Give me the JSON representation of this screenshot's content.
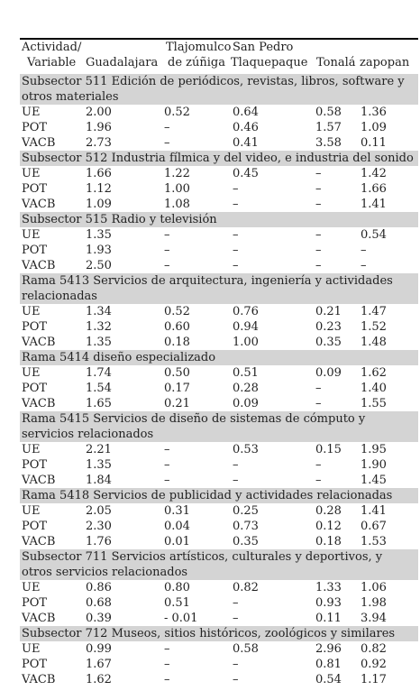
{
  "header": {
    "col0_line1": "Actividad/",
    "col0_line2": "Variable",
    "col1": "Guadalajara",
    "col2_line1": "Tlajomulco",
    "col2_line2": "de zúñiga",
    "col3_line1": "San Pedro",
    "col3_line2": "Tlaquepaque",
    "col4": "Tonalá",
    "col5": "zapopan"
  },
  "sections": [
    {
      "title": "Subsector 511 Edición de periódicos, revistas, libros, software y otros materiales",
      "rows": [
        [
          "UE",
          "2.00",
          "0.52",
          "0.64",
          "0.58",
          "1.36"
        ],
        [
          "POT",
          "1.96",
          "–",
          "0.46",
          "1.57",
          "1.09"
        ],
        [
          "VACB",
          "2.73",
          "–",
          "0.41",
          "3.58",
          "0.11"
        ]
      ]
    },
    {
      "title": "Subsector 512 Industria fílmica y del video, e industria del sonido",
      "rows": [
        [
          "UE",
          "1.66",
          "1.22",
          "0.45",
          "–",
          "1.42"
        ],
        [
          "POT",
          "1.12",
          "1.00",
          "–",
          "–",
          "1.66"
        ],
        [
          "VACB",
          "1.09",
          "1.08",
          "–",
          "–",
          "1.41"
        ]
      ]
    },
    {
      "title": "Subsector 515 Radio y televisión",
      "rows": [
        [
          "UE",
          "1.35",
          "–",
          "–",
          "–",
          "0.54"
        ],
        [
          "POT",
          "1.93",
          "–",
          "–",
          "–",
          "–"
        ],
        [
          "VACB",
          "2.50",
          "–",
          "–",
          "–",
          "–"
        ]
      ]
    },
    {
      "title": "Rama 5413 Servicios de arquitectura, ingeniería y actividades relacionadas",
      "rows": [
        [
          "UE",
          "1.34",
          "0.52",
          "0.76",
          "0.21",
          "1.47"
        ],
        [
          "POT",
          "1.32",
          "0.60",
          "0.94",
          "0.23",
          "1.52"
        ],
        [
          "VACB",
          "1.35",
          "0.18",
          "1.00",
          "0.35",
          "1.48"
        ]
      ]
    },
    {
      "title": "Rama 5414 diseño especializado",
      "rows": [
        [
          "UE",
          "1.74",
          "0.50",
          "0.51",
          "0.09",
          "1.62"
        ],
        [
          "POT",
          "1.54",
          "0.17",
          "0.28",
          "–",
          "1.40"
        ],
        [
          "VACB",
          "1.65",
          "0.21",
          "0.09",
          "–",
          "1.55"
        ]
      ]
    },
    {
      "title": "Rama 5415 Servicios de diseño de sistemas de cómputo y servicios relacionados",
      "rows": [
        [
          "UE",
          "2.21",
          "–",
          "0.53",
          "0.15",
          "1.95"
        ],
        [
          "POT",
          "1.35",
          "–",
          "–",
          "–",
          "1.90"
        ],
        [
          "VACB",
          "1.84",
          "–",
          "–",
          "–",
          "1.45"
        ]
      ]
    },
    {
      "title": "Rama 5418 Servicios de publicidad y actividades relacionadas",
      "rows": [
        [
          "UE",
          "2.05",
          "0.31",
          "0.25",
          "0.28",
          "1.41"
        ],
        [
          "POT",
          "2.30",
          "0.04",
          "0.73",
          "0.12",
          "0.67"
        ],
        [
          "VACB",
          "1.76",
          "0.01",
          "0.35",
          "0.18",
          "1.53"
        ]
      ]
    },
    {
      "title": "Subsector 711 Servicios artísticos, culturales y deportivos, y otros servicios relacionados",
      "rows": [
        [
          "UE",
          "0.86",
          "0.80",
          "0.82",
          "1.33",
          "1.06"
        ],
        [
          "POT",
          "0.68",
          "0.51",
          "–",
          "0.93",
          "1.98"
        ],
        [
          "VACB",
          "0.39",
          "- 0.01",
          "–",
          "0.11",
          "3.94"
        ]
      ]
    },
    {
      "title": "Subsector 712 Museos, sitios históricos, zoológicos y similares",
      "rows": [
        [
          "UE",
          "0.99",
          "–",
          "0.58",
          "2.96",
          "0.82"
        ],
        [
          "POT",
          "1.67",
          "–",
          "–",
          "0.81",
          "0.92"
        ],
        [
          "VACB",
          "1.62",
          "–",
          "–",
          "0.54",
          "1.17"
        ]
      ]
    }
  ]
}
